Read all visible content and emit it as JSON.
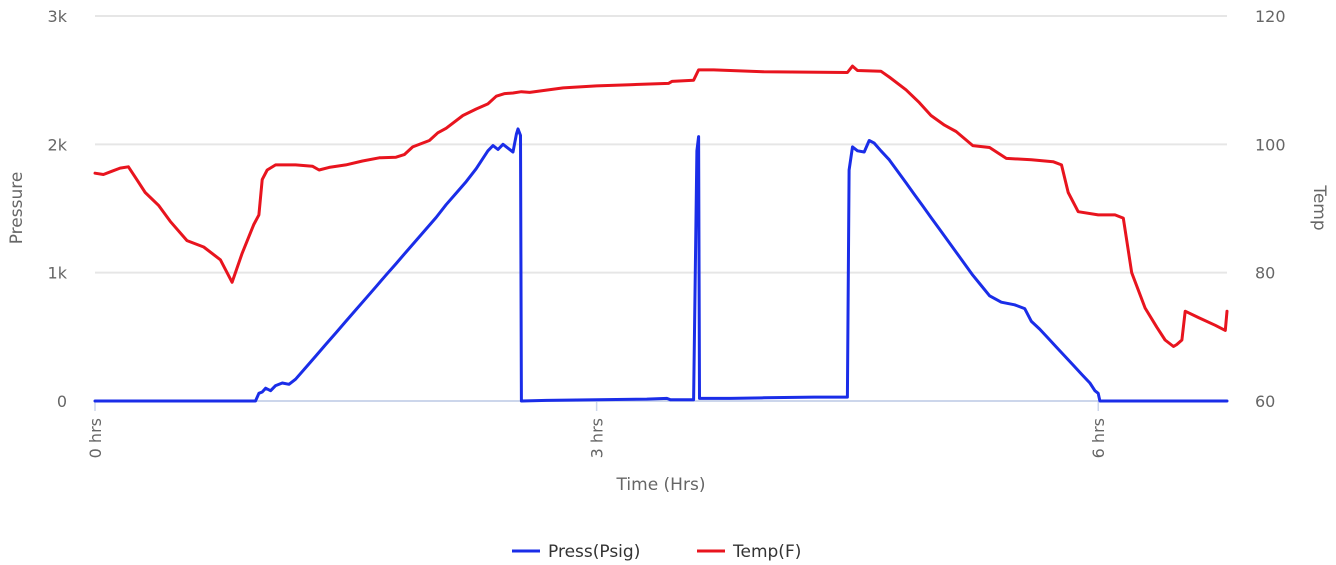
{
  "chart_data": {
    "type": "line",
    "xlabel": "Time (Hrs)",
    "ylabel_left": "Pressure",
    "ylabel_right": "Temp",
    "x_ticks": [
      "0 hrs",
      "3 hrs",
      "6 hrs"
    ],
    "x_tick_values": [
      0,
      3,
      6
    ],
    "xlim": [
      0,
      6.77
    ],
    "y_left_ticks": [
      "0",
      "1k",
      "2k",
      "3k"
    ],
    "y_left_tick_values": [
      0,
      1000,
      2000,
      3000
    ],
    "ylim_left": [
      0,
      3000
    ],
    "y_right_ticks": [
      "60",
      "80",
      "100",
      "120"
    ],
    "y_right_tick_values": [
      60,
      80,
      100,
      120
    ],
    "ylim_right": [
      60,
      120
    ],
    "grid": "horizontal",
    "legend_position": "bottom-center",
    "series": [
      {
        "name": "Press(Psig)",
        "axis": "left",
        "color": "#1a2de8",
        "points": [
          [
            0,
            0
          ],
          [
            0.96,
            0
          ],
          [
            0.98,
            60
          ],
          [
            1.0,
            70
          ],
          [
            1.02,
            100
          ],
          [
            1.05,
            80
          ],
          [
            1.08,
            120
          ],
          [
            1.12,
            140
          ],
          [
            1.16,
            130
          ],
          [
            1.2,
            170
          ],
          [
            1.26,
            260
          ],
          [
            1.32,
            350
          ],
          [
            1.38,
            440
          ],
          [
            1.44,
            530
          ],
          [
            1.5,
            620
          ],
          [
            1.56,
            710
          ],
          [
            1.62,
            800
          ],
          [
            1.68,
            890
          ],
          [
            1.74,
            980
          ],
          [
            1.8,
            1070
          ],
          [
            1.86,
            1160
          ],
          [
            1.92,
            1250
          ],
          [
            1.98,
            1340
          ],
          [
            2.04,
            1430
          ],
          [
            2.1,
            1530
          ],
          [
            2.16,
            1620
          ],
          [
            2.22,
            1710
          ],
          [
            2.28,
            1810
          ],
          [
            2.32,
            1890
          ],
          [
            2.35,
            1950
          ],
          [
            2.38,
            1990
          ],
          [
            2.41,
            1960
          ],
          [
            2.44,
            2000
          ],
          [
            2.47,
            1970
          ],
          [
            2.5,
            1940
          ],
          [
            2.52,
            2080
          ],
          [
            2.53,
            2120
          ],
          [
            2.545,
            2070
          ],
          [
            2.55,
            0
          ],
          [
            2.7,
            5
          ],
          [
            3.0,
            10
          ],
          [
            3.3,
            15
          ],
          [
            3.42,
            20
          ],
          [
            3.44,
            10
          ],
          [
            3.58,
            10
          ],
          [
            3.6,
            1950
          ],
          [
            3.61,
            2060
          ],
          [
            3.615,
            20
          ],
          [
            3.8,
            20
          ],
          [
            4.0,
            25
          ],
          [
            4.3,
            30
          ],
          [
            4.5,
            30
          ],
          [
            4.51,
            1800
          ],
          [
            4.53,
            1980
          ],
          [
            4.56,
            1950
          ],
          [
            4.6,
            1940
          ],
          [
            4.63,
            2030
          ],
          [
            4.66,
            2010
          ],
          [
            4.7,
            1950
          ],
          [
            4.75,
            1880
          ],
          [
            4.8,
            1790
          ],
          [
            4.85,
            1700
          ],
          [
            4.9,
            1610
          ],
          [
            4.95,
            1520
          ],
          [
            5.0,
            1430
          ],
          [
            5.05,
            1340
          ],
          [
            5.1,
            1250
          ],
          [
            5.15,
            1160
          ],
          [
            5.2,
            1070
          ],
          [
            5.25,
            980
          ],
          [
            5.3,
            900
          ],
          [
            5.35,
            820
          ],
          [
            5.42,
            770
          ],
          [
            5.5,
            750
          ],
          [
            5.56,
            720
          ],
          [
            5.6,
            620
          ],
          [
            5.65,
            560
          ],
          [
            5.7,
            490
          ],
          [
            5.75,
            420
          ],
          [
            5.8,
            350
          ],
          [
            5.85,
            280
          ],
          [
            5.9,
            210
          ],
          [
            5.95,
            140
          ],
          [
            5.98,
            80
          ],
          [
            6.0,
            60
          ],
          [
            6.01,
            0
          ],
          [
            6.77,
            0
          ]
        ]
      },
      {
        "name": "Temp(F)",
        "axis": "right",
        "color": "#e8141e",
        "points": [
          [
            0,
            95.5
          ],
          [
            0.05,
            95.3
          ],
          [
            0.1,
            95.8
          ],
          [
            0.15,
            96.3
          ],
          [
            0.2,
            96.5
          ],
          [
            0.25,
            94.5
          ],
          [
            0.3,
            92.5
          ],
          [
            0.38,
            90.5
          ],
          [
            0.45,
            88.0
          ],
          [
            0.55,
            85.0
          ],
          [
            0.65,
            84.0
          ],
          [
            0.75,
            82.0
          ],
          [
            0.82,
            78.5
          ],
          [
            0.88,
            83.0
          ],
          [
            0.95,
            87.5
          ],
          [
            0.98,
            89.0
          ],
          [
            1.0,
            94.5
          ],
          [
            1.03,
            96.0
          ],
          [
            1.08,
            96.8
          ],
          [
            1.2,
            96.8
          ],
          [
            1.3,
            96.6
          ],
          [
            1.34,
            96.0
          ],
          [
            1.4,
            96.4
          ],
          [
            1.5,
            96.8
          ],
          [
            1.6,
            97.4
          ],
          [
            1.7,
            97.9
          ],
          [
            1.8,
            98.0
          ],
          [
            1.85,
            98.4
          ],
          [
            1.9,
            99.6
          ],
          [
            2.0,
            100.6
          ],
          [
            2.05,
            101.8
          ],
          [
            2.1,
            102.5
          ],
          [
            2.2,
            104.5
          ],
          [
            2.28,
            105.5
          ],
          [
            2.35,
            106.3
          ],
          [
            2.4,
            107.5
          ],
          [
            2.45,
            107.9
          ],
          [
            2.5,
            108.0
          ],
          [
            2.55,
            108.2
          ],
          [
            2.6,
            108.1
          ],
          [
            2.8,
            108.8
          ],
          [
            3.0,
            109.1
          ],
          [
            3.2,
            109.3
          ],
          [
            3.43,
            109.5
          ],
          [
            3.45,
            109.8
          ],
          [
            3.58,
            110.0
          ],
          [
            3.61,
            111.6
          ],
          [
            3.7,
            111.6
          ],
          [
            4.0,
            111.3
          ],
          [
            4.5,
            111.2
          ],
          [
            4.53,
            112.2
          ],
          [
            4.56,
            111.5
          ],
          [
            4.7,
            111.4
          ],
          [
            4.75,
            110.5
          ],
          [
            4.85,
            108.5
          ],
          [
            4.93,
            106.5
          ],
          [
            5.0,
            104.5
          ],
          [
            5.08,
            103.0
          ],
          [
            5.15,
            102.0
          ],
          [
            5.25,
            99.8
          ],
          [
            5.35,
            99.5
          ],
          [
            5.45,
            97.8
          ],
          [
            5.6,
            97.6
          ],
          [
            5.73,
            97.3
          ],
          [
            5.78,
            96.8
          ],
          [
            5.82,
            92.5
          ],
          [
            5.88,
            89.5
          ],
          [
            6.0,
            89.0
          ],
          [
            6.1,
            89.0
          ],
          [
            6.15,
            88.5
          ],
          [
            6.2,
            80.0
          ],
          [
            6.28,
            74.5
          ],
          [
            6.35,
            71.5
          ],
          [
            6.4,
            69.5
          ],
          [
            6.45,
            68.5
          ],
          [
            6.47,
            68.8
          ],
          [
            6.5,
            69.5
          ],
          [
            6.52,
            74.0
          ],
          [
            6.6,
            73.0
          ],
          [
            6.7,
            71.8
          ],
          [
            6.76,
            71.0
          ],
          [
            6.77,
            74.0
          ]
        ]
      }
    ]
  }
}
